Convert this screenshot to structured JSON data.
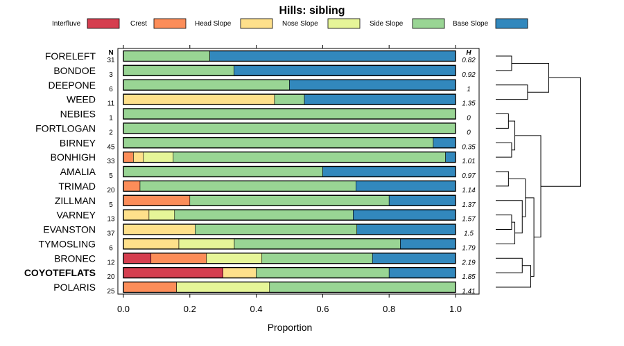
{
  "chart_data": {
    "type": "bar",
    "stacked": true,
    "orientation": "horizontal",
    "title": "Hills: sibling",
    "xlabel": "Proportion",
    "ylabel": "",
    "xlim": [
      0,
      1
    ],
    "xticks": [
      "0.0",
      "0.2",
      "0.4",
      "0.6",
      "0.8",
      "1.0"
    ],
    "n_header": "N",
    "h_header": "H",
    "legend_position": "top",
    "legend": [
      {
        "name": "Interfluve",
        "color": "#d53e4f"
      },
      {
        "name": "Crest",
        "color": "#fc8d59"
      },
      {
        "name": "Head Slope",
        "color": "#fee08b"
      },
      {
        "name": "Nose Slope",
        "color": "#e6f598"
      },
      {
        "name": "Side Slope",
        "color": "#99d594"
      },
      {
        "name": "Base Slope",
        "color": "#3288bd"
      }
    ],
    "series_names": [
      "Interfluve",
      "Crest",
      "Head Slope",
      "Nose Slope",
      "Side Slope",
      "Base Slope"
    ],
    "rows": [
      {
        "name": "FORELEFT",
        "n": "31",
        "h": "0.82",
        "bold": false,
        "values": [
          0,
          0,
          0,
          0,
          0.26,
          0.74
        ]
      },
      {
        "name": "BONDOE",
        "n": "3",
        "h": "0.92",
        "bold": false,
        "values": [
          0,
          0,
          0,
          0,
          0.333,
          0.667
        ]
      },
      {
        "name": "DEEPONE",
        "n": "6",
        "h": "1",
        "bold": false,
        "values": [
          0,
          0,
          0,
          0,
          0.5,
          0.5
        ]
      },
      {
        "name": "WEED",
        "n": "11",
        "h": "1.35",
        "bold": false,
        "values": [
          0,
          0,
          0.455,
          0,
          0.09,
          0.455
        ]
      },
      {
        "name": "NEBIES",
        "n": "1",
        "h": "0",
        "bold": false,
        "values": [
          0,
          0,
          0,
          0,
          1,
          0
        ]
      },
      {
        "name": "FORTLOGAN",
        "n": "2",
        "h": "0",
        "bold": false,
        "values": [
          0,
          0,
          0,
          0,
          1,
          0
        ]
      },
      {
        "name": "BIRNEY",
        "n": "45",
        "h": "0.35",
        "bold": false,
        "values": [
          0,
          0,
          0,
          0,
          0.933,
          0.067
        ]
      },
      {
        "name": "BONHIGH",
        "n": "33",
        "h": "1.01",
        "bold": false,
        "values": [
          0,
          0.03,
          0.03,
          0.09,
          0.82,
          0.03
        ]
      },
      {
        "name": "AMALIA",
        "n": "5",
        "h": "0.97",
        "bold": false,
        "values": [
          0,
          0,
          0,
          0,
          0.6,
          0.4
        ]
      },
      {
        "name": "TRIMAD",
        "n": "20",
        "h": "1.14",
        "bold": false,
        "values": [
          0,
          0.05,
          0,
          0,
          0.65,
          0.3
        ]
      },
      {
        "name": "ZILLMAN",
        "n": "5",
        "h": "1.37",
        "bold": false,
        "values": [
          0,
          0.2,
          0,
          0,
          0.6,
          0.2
        ]
      },
      {
        "name": "VARNEY",
        "n": "13",
        "h": "1.57",
        "bold": false,
        "values": [
          0,
          0,
          0.077,
          0.077,
          0.538,
          0.308
        ]
      },
      {
        "name": "EVANSTON",
        "n": "37",
        "h": "1.5",
        "bold": false,
        "values": [
          0,
          0,
          0.216,
          0,
          0.487,
          0.297
        ]
      },
      {
        "name": "TYMOSLING",
        "n": "6",
        "h": "1.79",
        "bold": false,
        "values": [
          0,
          0,
          0.167,
          0.167,
          0.5,
          0.166
        ]
      },
      {
        "name": "BRONEC",
        "n": "12",
        "h": "2.19",
        "bold": false,
        "values": [
          0.083,
          0.167,
          0,
          0.167,
          0.333,
          0.25
        ]
      },
      {
        "name": "COYOTEFLATS",
        "n": "20",
        "h": "1.85",
        "bold": true,
        "values": [
          0.3,
          0,
          0.1,
          0,
          0.4,
          0.2
        ]
      },
      {
        "name": "POLARIS",
        "n": "25",
        "h": "1.41",
        "bold": false,
        "values": [
          0,
          0.16,
          0,
          0.28,
          0.56,
          0
        ]
      }
    ],
    "dendrogram": {
      "description": "hierarchical clustering of the 17 series, leaves in row order",
      "merges": [
        {
          "a": 0,
          "b": 1,
          "height": 0.3
        },
        {
          "a": 2,
          "b": 3,
          "height": 0.6
        },
        {
          "a": -1,
          "b": -2,
          "height": 1.0
        },
        {
          "a": 4,
          "b": 5,
          "height": 0.24
        },
        {
          "a": 6,
          "b": 7,
          "height": 0.3
        },
        {
          "a": -4,
          "b": -5,
          "height": 0.36
        },
        {
          "a": 8,
          "b": 9,
          "height": 0.24
        },
        {
          "a": 11,
          "b": 12,
          "height": 0.3
        },
        {
          "a": -8,
          "b": 13,
          "height": 0.36
        },
        {
          "a": 10,
          "b": -9,
          "height": 0.5
        },
        {
          "a": -7,
          "b": -10,
          "height": 0.56
        },
        {
          "a": 14,
          "b": 15,
          "height": 0.5
        },
        {
          "a": -12,
          "b": 16,
          "height": 0.66
        },
        {
          "a": -11,
          "b": -13,
          "height": 0.72
        },
        {
          "a": -6,
          "b": -14,
          "height": 0.85
        },
        {
          "a": -3,
          "b": -15,
          "height": 1.6
        }
      ]
    }
  }
}
